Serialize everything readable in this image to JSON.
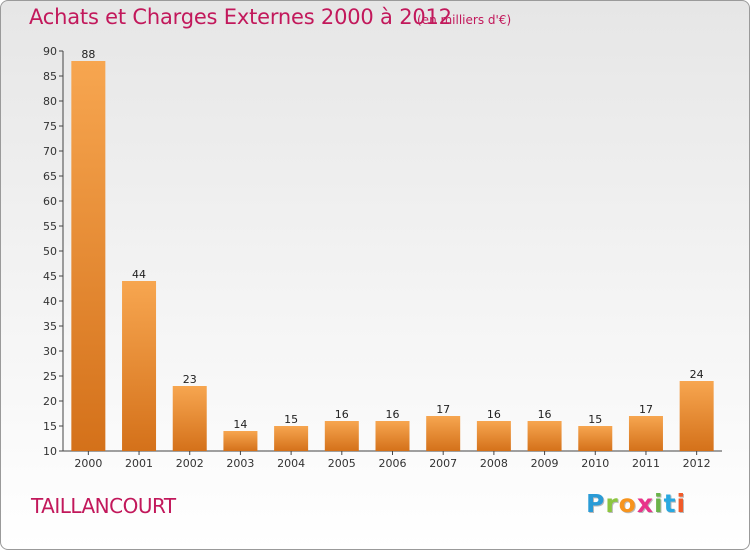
{
  "header": {
    "title": "Achats et Charges Externes 2000 à 2012",
    "subtitle": "(en milliers d'€)"
  },
  "footer": {
    "commune": "TAILLANCOURT",
    "logo_letters": [
      "P",
      "r",
      "o",
      "x",
      "i",
      "t",
      "i"
    ]
  },
  "chart_data": {
    "type": "bar",
    "categories": [
      "2000",
      "2001",
      "2002",
      "2003",
      "2004",
      "2005",
      "2006",
      "2007",
      "2008",
      "2009",
      "2010",
      "2011",
      "2012"
    ],
    "values": [
      88,
      44,
      23,
      14,
      15,
      16,
      16,
      17,
      16,
      16,
      15,
      17,
      24
    ],
    "ylim": [
      10,
      90
    ],
    "yticks": [
      10,
      15,
      20,
      25,
      30,
      35,
      40,
      45,
      50,
      55,
      60,
      65,
      70,
      75,
      80,
      85,
      90
    ],
    "grid": false,
    "bar_color_light": "#f7a650",
    "bar_color_dark": "#d4711a"
  }
}
